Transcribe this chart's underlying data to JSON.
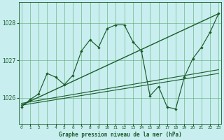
{
  "bg_color": "#c8eef0",
  "grid_color": "#5aaa6a",
  "line_color": "#1a5c28",
  "hours": [
    0,
    1,
    2,
    3,
    4,
    5,
    6,
    7,
    8,
    9,
    10,
    11,
    12,
    13,
    14,
    15,
    16,
    17,
    18,
    19,
    20,
    21,
    22,
    23
  ],
  "pressure": [
    1025.75,
    1025.95,
    1026.1,
    1026.65,
    1026.55,
    1026.35,
    1026.6,
    1027.25,
    1027.55,
    1027.35,
    1027.85,
    1027.95,
    1027.95,
    1027.5,
    1027.25,
    1026.05,
    1026.3,
    1025.75,
    1025.7,
    1026.55,
    1027.05,
    1027.35,
    1027.75,
    1028.25
  ],
  "trend1_x": [
    0,
    23
  ],
  "trend1_y": [
    1025.8,
    1028.25
  ],
  "trend2_x": [
    0,
    23
  ],
  "trend2_y": [
    1025.8,
    1026.65
  ],
  "trend3_x": [
    0,
    23
  ],
  "trend3_y": [
    1025.85,
    1026.75
  ],
  "ylim_min": 1025.3,
  "ylim_max": 1028.55,
  "xlim_min": -0.3,
  "xlim_max": 23.3,
  "yticks": [
    1026,
    1027,
    1028
  ],
  "xticks": [
    0,
    1,
    2,
    3,
    4,
    5,
    6,
    7,
    8,
    9,
    10,
    11,
    12,
    13,
    14,
    15,
    16,
    17,
    18,
    19,
    20,
    21,
    22,
    23
  ],
  "xlabel": "Graphe pression niveau de la mer (hPa)"
}
